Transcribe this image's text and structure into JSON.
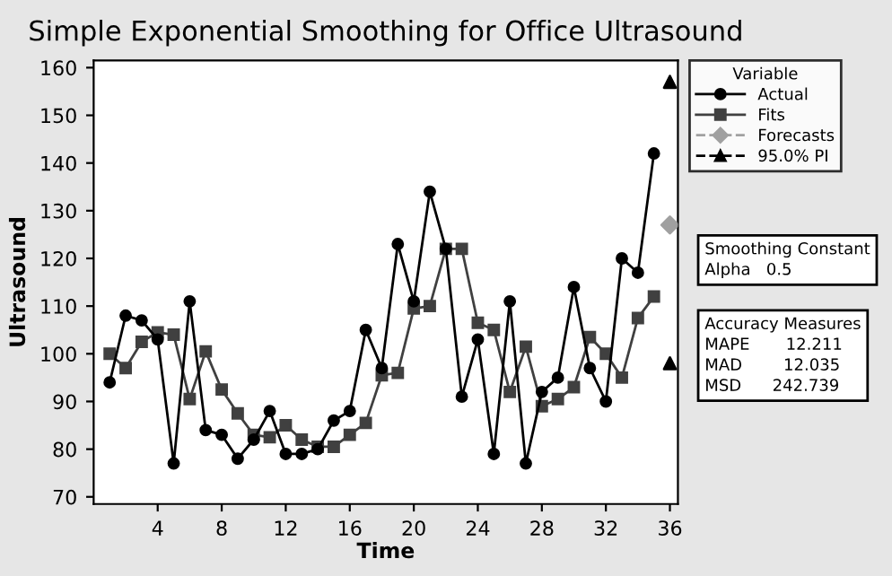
{
  "chart_data": {
    "type": "line",
    "title": "Simple Exponential Smoothing for Office Ultrasound",
    "xlabel": "Time",
    "ylabel": "Ultrasound",
    "legend_title": "Variable",
    "legend": "right",
    "xlim": [
      0,
      36.5
    ],
    "xticks": [
      4,
      8,
      12,
      16,
      20,
      24,
      28,
      32,
      36
    ],
    "ylim": [
      68.5,
      161.5
    ],
    "yticks": [
      70,
      80,
      90,
      100,
      110,
      120,
      130,
      140,
      150,
      160
    ],
    "grid": false,
    "series": [
      {
        "name": "Actual",
        "color": "#000000",
        "marker": "circle",
        "line_style": "solid",
        "x": [
          1,
          2,
          3,
          4,
          5,
          6,
          7,
          8,
          9,
          10,
          11,
          12,
          13,
          14,
          15,
          16,
          17,
          18,
          19,
          20,
          21,
          22,
          23,
          24,
          25,
          26,
          27,
          28,
          29,
          30,
          31,
          32,
          33,
          34,
          35
        ],
        "values": [
          94,
          108,
          107,
          103,
          77,
          111,
          84,
          83,
          78,
          82,
          88,
          79,
          79,
          80,
          86,
          88,
          105,
          97,
          123,
          111,
          134,
          122,
          91,
          103,
          79,
          111,
          77,
          92,
          95,
          114,
          97,
          90,
          120,
          117,
          142
        ]
      },
      {
        "name": "Fits",
        "color": "#404040",
        "marker": "square",
        "line_style": "solid",
        "x": [
          1,
          2,
          3,
          4,
          5,
          6,
          7,
          8,
          9,
          10,
          11,
          12,
          13,
          14,
          15,
          16,
          17,
          18,
          19,
          20,
          21,
          22,
          23,
          24,
          25,
          26,
          27,
          28,
          29,
          30,
          31,
          32,
          33,
          34,
          35
        ],
        "values": [
          100,
          97,
          102.5,
          104.5,
          104,
          90.5,
          100.5,
          92.5,
          87.5,
          83,
          82.5,
          85,
          82,
          80.5,
          80.5,
          83,
          85.5,
          95.5,
          96,
          109.5,
          110,
          122,
          122,
          106.5,
          105,
          92,
          101.5,
          89,
          90.5,
          93,
          103.5,
          100,
          95,
          107.5,
          112
        ]
      },
      {
        "name": "Forecasts",
        "color": "#a0a0a0",
        "marker": "diamond",
        "line_style": "dashed",
        "type": "scatter",
        "x": [
          36
        ],
        "values": [
          127
        ]
      },
      {
        "name": "95.0% PI",
        "color": "#000000",
        "marker": "triangle",
        "line_style": "dashed",
        "type": "scatter",
        "x": [
          36,
          36
        ],
        "values": [
          157,
          98
        ]
      }
    ],
    "annotations": [
      "Smoothing Constant\nAlpha   0.5",
      "Accuracy Measures\nMAPE       12.211\nMAD        12.035\nMSD      242.739"
    ]
  }
}
